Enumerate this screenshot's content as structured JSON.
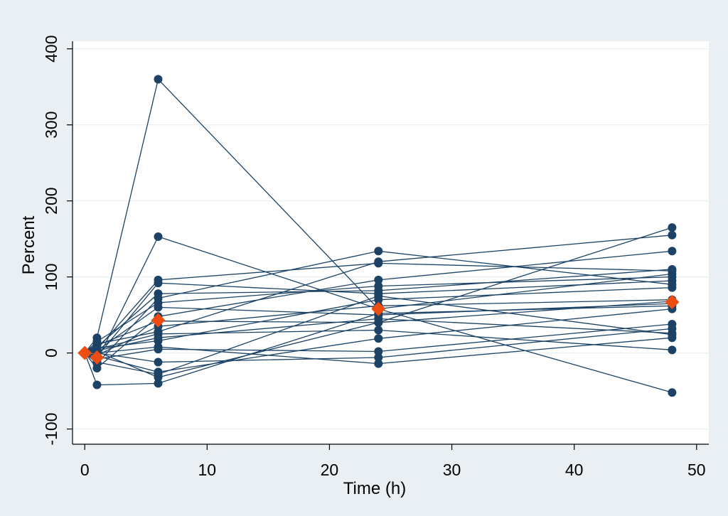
{
  "chart_data": {
    "type": "line",
    "title": "",
    "xlabel": "Time (h)",
    "ylabel": "Percent",
    "xlim": [
      -1,
      51
    ],
    "ylim": [
      -120,
      410
    ],
    "x_ticks": [
      0,
      10,
      20,
      30,
      40,
      50
    ],
    "y_ticks": [
      -100,
      0,
      100,
      200,
      300,
      400
    ],
    "x": [
      1,
      6,
      24,
      48
    ],
    "grid": "horizontal",
    "colors": {
      "series": "#1c4366",
      "mean": "#ee4d11",
      "plot_bg": "#ffffff",
      "page_bg": "#e9eff2"
    },
    "series": [
      {
        "values": [
          20,
          360,
          58,
          -52
        ]
      },
      {
        "values": [
          -10,
          153,
          58,
          104
        ]
      },
      {
        "values": [
          5,
          96,
          118,
          108
        ]
      },
      {
        "values": [
          -5,
          92,
          78,
          95
        ]
      },
      {
        "values": [
          8,
          78,
          82,
          110
        ]
      },
      {
        "values": [
          -14,
          72,
          134,
          90
        ]
      },
      {
        "values": [
          15,
          66,
          88,
          100
        ]
      },
      {
        "values": [
          -20,
          48,
          96,
          134
        ]
      },
      {
        "values": [
          -42,
          -40,
          52,
          62
        ]
      },
      {
        "values": [
          10,
          42,
          40,
          165
        ]
      },
      {
        "values": [
          -3,
          35,
          62,
          70
        ]
      },
      {
        "values": [
          12,
          28,
          120,
          155
        ]
      },
      {
        "values": [
          3,
          20,
          45,
          26
        ]
      },
      {
        "values": [
          6,
          16,
          70,
          86
        ]
      },
      {
        "values": [
          -8,
          5,
          2,
          38
        ]
      },
      {
        "values": [
          0,
          -12,
          -6,
          32
        ]
      },
      {
        "values": [
          -4,
          -25,
          19,
          58
        ]
      },
      {
        "values": [
          2,
          -32,
          40,
          68
        ]
      },
      {
        "values": [
          -12,
          -28,
          75,
          24
        ]
      },
      {
        "values": [
          0,
          8,
          -14,
          20
        ]
      },
      {
        "values": [
          5,
          25,
          30,
          4
        ]
      },
      {
        "values": [
          3,
          60,
          50,
          65
        ]
      }
    ],
    "mean_series": {
      "x": [
        0,
        1,
        6,
        24,
        48
      ],
      "values": [
        0,
        -6,
        43,
        58,
        67
      ]
    }
  }
}
